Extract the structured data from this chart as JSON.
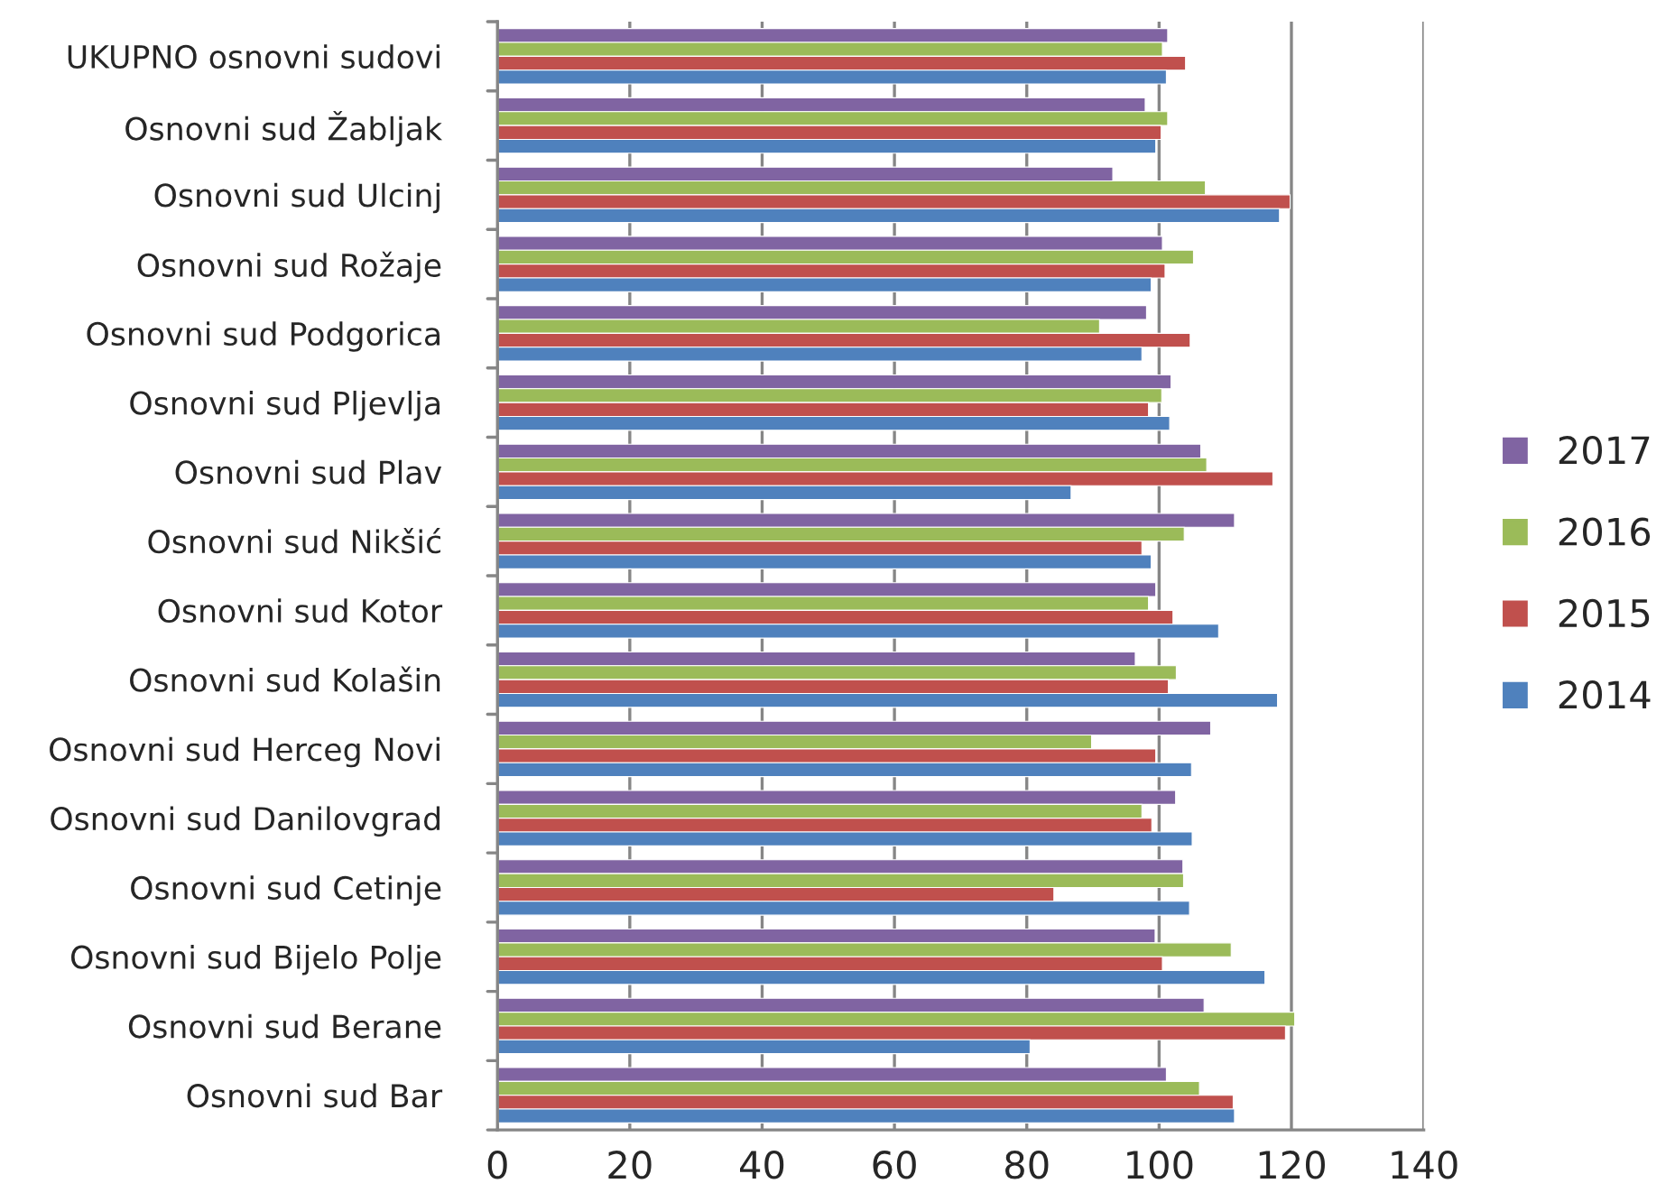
{
  "chart_data": {
    "type": "bar",
    "orientation": "horizontal",
    "categories": [
      "UKUPNO osnovni sudovi",
      "Osnovni sud Žabljak",
      "Osnovni sud Ulcinj",
      "Osnovni sud Rožaje",
      "Osnovni sud Podgorica",
      "Osnovni sud Pljevlja",
      "Osnovni sud Plav",
      "Osnovni sud Nikšić",
      "Osnovni sud Kotor",
      "Osnovni sud Kolašin",
      "Osnovni sud Herceg Novi",
      "Osnovni sud Danilovgrad",
      "Osnovni sud Cetinje",
      "Osnovni sud Bijelo Polje",
      "Osnovni sud Berane",
      "Osnovni sud Bar"
    ],
    "series": [
      {
        "name": "2017",
        "color": "#8064a2",
        "values": [
          101.3,
          97.9,
          93.0,
          100.5,
          98.1,
          101.8,
          106.3,
          111.4,
          99.5,
          96.4,
          107.8,
          102.5,
          103.6,
          99.4,
          106.8,
          101.1
        ]
      },
      {
        "name": "2016",
        "color": "#9bbb59",
        "values": [
          100.5,
          101.3,
          107.0,
          105.2,
          91.0,
          100.4,
          107.2,
          103.8,
          98.4,
          102.6,
          89.8,
          97.4,
          103.7,
          110.9,
          120.5,
          106.1
        ]
      },
      {
        "name": "2015",
        "color": "#c0504d",
        "values": [
          104.0,
          100.3,
          119.8,
          100.9,
          104.7,
          98.4,
          117.2,
          97.4,
          102.1,
          101.4,
          99.5,
          98.9,
          84.1,
          100.5,
          119.1,
          111.2
        ]
      },
      {
        "name": "2014",
        "color": "#4f81bd",
        "values": [
          101.1,
          99.5,
          118.2,
          98.8,
          97.4,
          101.6,
          86.7,
          98.8,
          109.0,
          117.9,
          104.9,
          105.0,
          104.6,
          116.0,
          80.5,
          111.4
        ]
      }
    ],
    "xlim": [
      0,
      140
    ],
    "xticks": [
      0,
      20,
      40,
      60,
      80,
      100,
      120,
      140
    ],
    "grid": "x",
    "legend": "right"
  }
}
